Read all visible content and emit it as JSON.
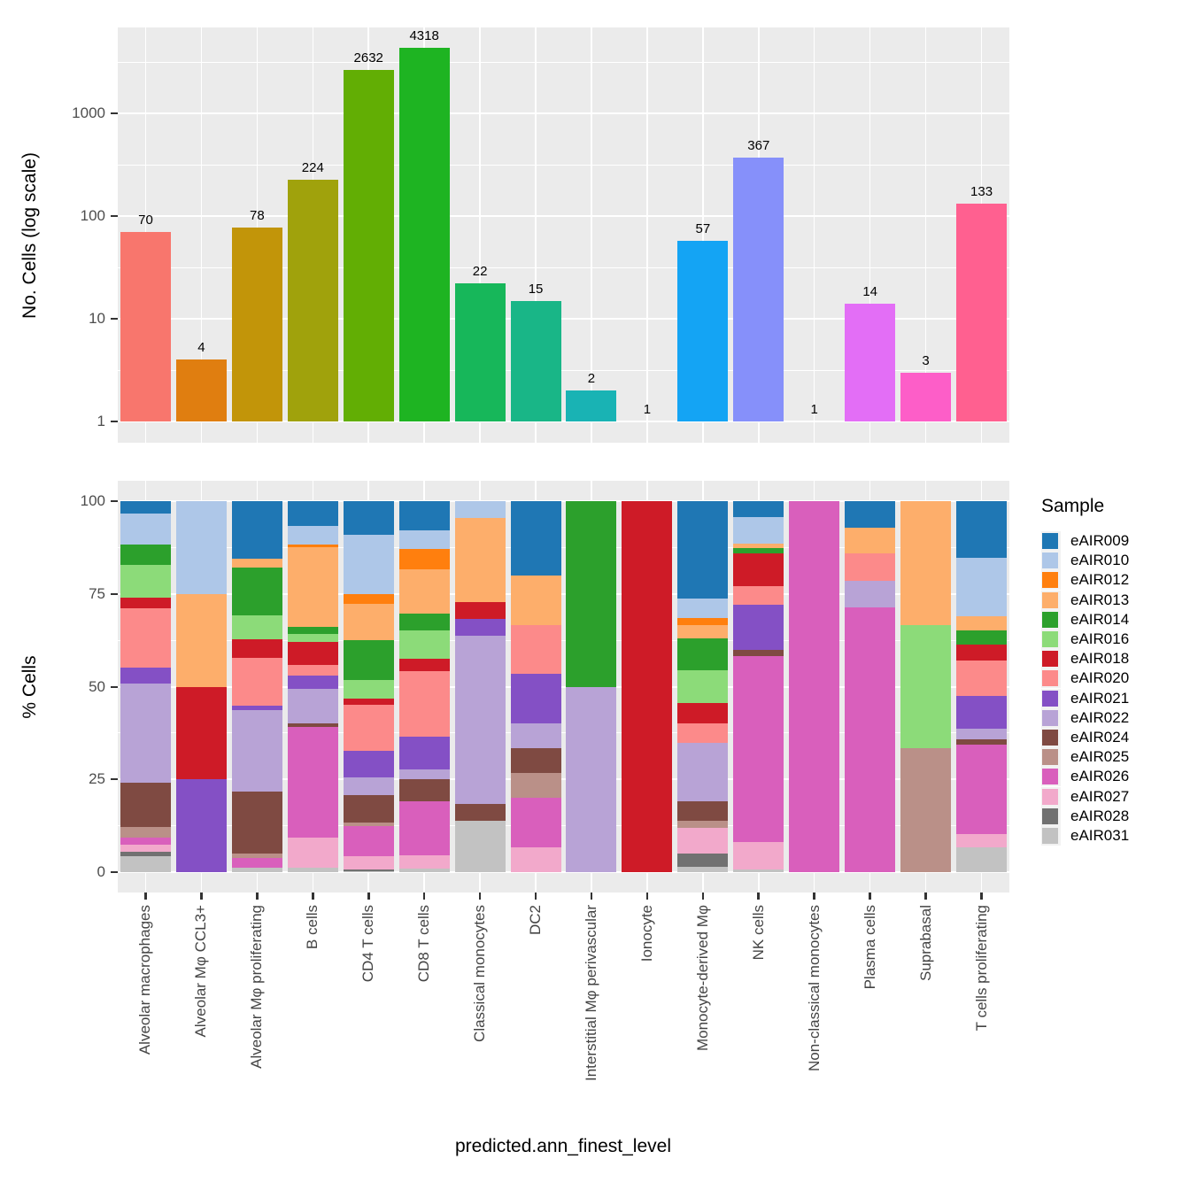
{
  "figure": {
    "background": "#FFFFFF",
    "panel_background": "#EBEBEB",
    "grid_color": "#FFFFFF",
    "tick_color": "#333333",
    "axis_text_color": "#4D4D4D"
  },
  "axes": {
    "top_y_title": "No. Cells (log scale)",
    "bottom_y_title": "% Cells",
    "x_title": "predicted.ann_finest_level"
  },
  "legend": {
    "title": "Sample"
  },
  "samples": [
    {
      "id": "eAIR009",
      "color": "#1F77B4"
    },
    {
      "id": "eAIR010",
      "color": "#AEC7E8"
    },
    {
      "id": "eAIR012",
      "color": "#FF7F0E"
    },
    {
      "id": "eAIR013",
      "color": "#FDAE6B"
    },
    {
      "id": "eAIR014",
      "color": "#2CA02C"
    },
    {
      "id": "eAIR016",
      "color": "#8CDB79"
    },
    {
      "id": "eAIR018",
      "color": "#CE1B27"
    },
    {
      "id": "eAIR020",
      "color": "#FC8A8A"
    },
    {
      "id": "eAIR021",
      "color": "#8450C5"
    },
    {
      "id": "eAIR022",
      "color": "#B8A3D6"
    },
    {
      "id": "eAIR024",
      "color": "#7F4A42"
    },
    {
      "id": "eAIR025",
      "color": "#BA9088"
    },
    {
      "id": "eAIR026",
      "color": "#D95FBC"
    },
    {
      "id": "eAIR027",
      "color": "#F2A9CB"
    },
    {
      "id": "eAIR028",
      "color": "#717171"
    },
    {
      "id": "eAIR031",
      "color": "#C2C2C2"
    }
  ],
  "chart_data": [
    {
      "type": "bar",
      "title": "",
      "xlabel": "",
      "ylabel": "No. Cells (log scale)",
      "yscale": "log",
      "ylim": [
        1,
        5000
      ],
      "yticks": [
        1,
        10,
        100,
        1000
      ],
      "grid": true,
      "categories": [
        "Alveolar macrophages",
        "Alveolar Mφ CCL3+",
        "Alveolar Mφ proliferating",
        "B cells",
        "CD4 T cells",
        "CD8 T cells",
        "Classical monocytes",
        "DC2",
        "Interstitial Mφ perivascular",
        "Ionocyte",
        "Monocyte-derived Mφ",
        "NK cells",
        "Non-classical monocytes",
        "Plasma cells",
        "Suprabasal",
        "T cells proliferating"
      ],
      "values": [
        70,
        4,
        78,
        224,
        2632,
        4318,
        22,
        15,
        2,
        1,
        57,
        367,
        1,
        14,
        3,
        133
      ],
      "bar_labels": [
        "70",
        "4",
        "78",
        "224",
        "2632",
        "4318",
        "22",
        "15",
        "2",
        "1",
        "57",
        "367",
        "1",
        "14",
        "3",
        "133"
      ],
      "bar_colors": [
        "#F8766D",
        "#E07E10",
        "#C29509",
        "#A0A20C",
        "#62AE04",
        "#1EB422",
        "#17B75A",
        "#19B687",
        "#19B3B4",
        "#00B2F3",
        "#14A4F4",
        "#8690FA",
        "#C77CFF",
        "#E36EF6",
        "#FD5EC8",
        "#FF6090"
      ]
    },
    {
      "type": "stacked_bar_percent",
      "title": "",
      "xlabel": "predicted.ann_finest_level",
      "ylabel": "% Cells",
      "ylim": [
        0,
        100
      ],
      "yticks": [
        0,
        25,
        50,
        75,
        100
      ],
      "grid": true,
      "legend_title": "Sample",
      "legend_position": "right",
      "categories": [
        "Alveolar macrophages",
        "Alveolar Mφ CCL3+",
        "Alveolar Mφ proliferating",
        "B cells",
        "CD4 T cells",
        "CD8 T cells",
        "Classical monocytes",
        "DC2",
        "Interstitial Mφ perivascular",
        "Ionocyte",
        "Monocyte-derived Mφ",
        "NK cells",
        "Non-classical monocytes",
        "Plasma cells",
        "Suprabasal",
        "T cells proliferating"
      ],
      "series": [
        {
          "name": "eAIR009",
          "color": "#1F77B4",
          "values": [
            3.3,
            0,
            15.4,
            6.7,
            9.1,
            7.9,
            0,
            20,
            0,
            0,
            26.3,
            4.3,
            0,
            7.1,
            0,
            15.2
          ]
        },
        {
          "name": "eAIR010",
          "color": "#AEC7E8",
          "values": [
            8.5,
            25,
            0,
            4.9,
            15.9,
            5.1,
            4.5,
            0,
            0,
            0,
            5.3,
            7.1,
            0,
            0,
            0,
            15.8
          ]
        },
        {
          "name": "eAIR012",
          "color": "#FF7F0E",
          "values": [
            0,
            0,
            0,
            0.9,
            2.7,
            5.3,
            0,
            0,
            0,
            0,
            1.8,
            0,
            0,
            0,
            0,
            0
          ]
        },
        {
          "name": "eAIR013",
          "color": "#FDAE6B",
          "values": [
            0,
            25,
            2.6,
            21.4,
            9.7,
            12.1,
            22.7,
            13.3,
            0,
            0,
            3.5,
            1.2,
            0,
            7.1,
            33.3,
            3.8
          ]
        },
        {
          "name": "eAIR014",
          "color": "#2CA02C",
          "values": [
            5.3,
            0,
            12.8,
            1.8,
            10.7,
            4.5,
            0,
            0,
            50,
            0,
            8.8,
            1.4,
            0,
            0,
            0,
            3.9
          ]
        },
        {
          "name": "eAIR016",
          "color": "#8CDB79",
          "values": [
            9.0,
            0,
            6.4,
            2.2,
            5.2,
            7.7,
            0,
            0,
            0,
            0,
            8.8,
            0,
            0,
            0,
            33.4,
            0
          ]
        },
        {
          "name": "eAIR018",
          "color": "#CE1B27",
          "values": [
            2.7,
            25,
            5.1,
            6.3,
            1.6,
            3.2,
            4.5,
            0,
            0,
            100,
            5.3,
            8.8,
            0,
            0,
            0,
            4.3
          ]
        },
        {
          "name": "eAIR020",
          "color": "#FC8A8A",
          "values": [
            16.0,
            0,
            12.8,
            2.7,
            12.4,
            17.8,
            0,
            13.3,
            0,
            0,
            5.3,
            5.1,
            0,
            7.2,
            0,
            9.5
          ]
        },
        {
          "name": "eAIR021",
          "color": "#8450C5",
          "values": [
            4.4,
            25,
            1.3,
            3.6,
            7.2,
            8.8,
            4.5,
            13.3,
            0,
            0,
            0,
            12.1,
            0,
            0,
            0,
            8.9
          ]
        },
        {
          "name": "eAIR022",
          "color": "#B8A3D6",
          "values": [
            26.6,
            0,
            21.8,
            9.4,
            4.8,
            2.6,
            45.5,
            6.7,
            50,
            0,
            15.8,
            0,
            0,
            7.2,
            0,
            2.9
          ]
        },
        {
          "name": "eAIR024",
          "color": "#7F4A42",
          "values": [
            12.0,
            0,
            16.7,
            0.9,
            7.4,
            5.8,
            4.5,
            6.7,
            0,
            0,
            5.3,
            1.7,
            0,
            0,
            0,
            1.3
          ]
        },
        {
          "name": "eAIR025",
          "color": "#BA9088",
          "values": [
            3.0,
            0,
            1.3,
            0,
            0.9,
            0,
            0,
            6.7,
            0,
            0,
            1.8,
            0,
            0,
            0,
            33.3,
            0
          ]
        },
        {
          "name": "eAIR026",
          "color": "#D95FBC",
          "values": [
            1.8,
            0,
            2.6,
            29.9,
            8.0,
            14.6,
            0,
            13.3,
            0,
            0,
            0,
            50.1,
            100,
            71.4,
            0,
            24.2
          ]
        },
        {
          "name": "eAIR027",
          "color": "#F2A9CB",
          "values": [
            1.8,
            0,
            0,
            8.0,
            3.8,
            3.7,
            0,
            6.7,
            0,
            0,
            7.0,
            7.5,
            0,
            0,
            0,
            3.5
          ]
        },
        {
          "name": "eAIR028",
          "color": "#717171",
          "values": [
            1.3,
            0,
            0,
            0,
            0.3,
            0,
            0,
            0,
            0,
            0,
            3.5,
            0,
            0,
            0,
            0,
            0
          ]
        },
        {
          "name": "eAIR031",
          "color": "#C2C2C2",
          "values": [
            4.3,
            0,
            1.2,
            1.3,
            0.3,
            0.9,
            13.8,
            0,
            0,
            0,
            1.5,
            0.7,
            0,
            0,
            0,
            6.7
          ]
        }
      ]
    }
  ]
}
